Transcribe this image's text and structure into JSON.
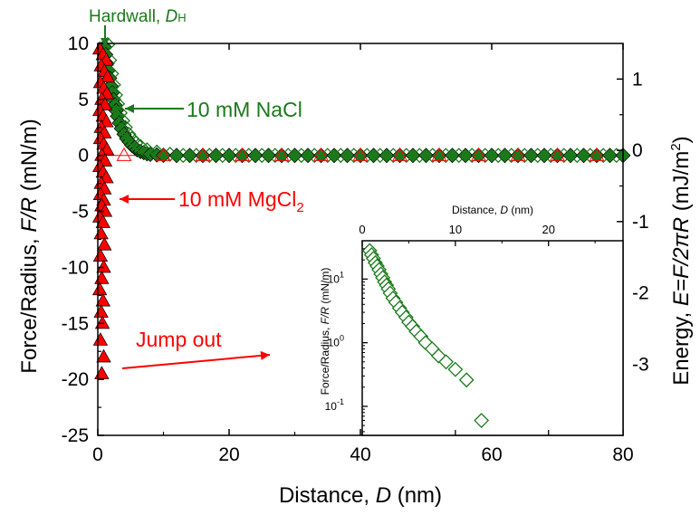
{
  "chart_data": [
    {
      "type": "scatter",
      "title": "",
      "xlabel_prefix": "Distance, ",
      "xlabel_var": "D",
      "xlabel_suffix": " (nm)",
      "ylabel_prefix": "Force/Radius, ",
      "ylabel_var": "F/R",
      "ylabel_suffix": " (mN/m)",
      "y2label_prefix": "Energy, ",
      "y2label_var": "E=F/2πR",
      "y2label_suffix": " (mJ/m",
      "y2label_sup": "2",
      "y2label_end": ")",
      "xlim": [
        0,
        80
      ],
      "ylim": [
        -25,
        10
      ],
      "y2lim": [
        -4,
        1.5
      ],
      "xticks": [
        "0",
        "20",
        "40",
        "60",
        "80"
      ],
      "yticks": [
        "-25",
        "-20",
        "-15",
        "-10",
        "-5",
        "0",
        "5",
        "10"
      ],
      "y2ticks": [
        "-3",
        "-2",
        "-1",
        "0",
        "1"
      ],
      "grid": false,
      "annotations": {
        "hardwall_prefix": "Hardwall, ",
        "hardwall_var": "D",
        "hardwall_sub": "H",
        "nacl": "10 mM NaCl",
        "mgcl_prefix": "10 mM MgCl",
        "mgcl_sub": "2",
        "jump": "Jump out"
      },
      "colors": {
        "nacl": "#1a7a1a",
        "mgcl": "#ff0000",
        "axis": "#000000"
      },
      "series": [
        {
          "name": "10 mM NaCl",
          "marker": "diamond-filled",
          "x": [
            1.0,
            1.2,
            1.4,
            1.6,
            1.8,
            2.0,
            2.2,
            2.4,
            2.6,
            2.8,
            3.0,
            3.3,
            3.6,
            4.0,
            4.4,
            4.8,
            5.2,
            5.6,
            6.0,
            6.5,
            7.0,
            7.5,
            8.0,
            9,
            10,
            12,
            14,
            16,
            18,
            20,
            22,
            24,
            26,
            28,
            30,
            32,
            34,
            36,
            38,
            40,
            42,
            44,
            46,
            48,
            50,
            52,
            54,
            56,
            58,
            60,
            62,
            64,
            66,
            68,
            70,
            72,
            74,
            76,
            78,
            80
          ],
          "y": [
            9.7,
            9.0,
            8.2,
            7.6,
            6.9,
            6.2,
            5.6,
            5.0,
            4.5,
            4.0,
            3.5,
            2.9,
            2.4,
            1.9,
            1.5,
            1.2,
            0.9,
            0.7,
            0.5,
            0.35,
            0.25,
            0.15,
            0.1,
            0.05,
            0.02,
            0,
            0,
            0,
            0,
            0,
            0,
            0,
            0,
            0,
            0,
            0,
            0,
            0,
            0,
            0,
            0,
            0,
            0,
            0,
            0,
            0,
            0,
            0,
            0,
            0,
            0,
            0,
            0,
            0,
            0,
            0,
            0,
            0,
            0,
            0
          ]
        },
        {
          "name": "10 mM NaCl",
          "marker": "diamond-open",
          "x": [
            1.5,
            1.8,
            2.1,
            2.4,
            2.7,
            3.0,
            3.4,
            3.8,
            4.2,
            4.7,
            5.2,
            5.8,
            6.5,
            7.5,
            9,
            11,
            13,
            15,
            17,
            19,
            21,
            23,
            25,
            27,
            29,
            31,
            33,
            35,
            37,
            39,
            41,
            43,
            45,
            47,
            49,
            51,
            53,
            55,
            57,
            59,
            61,
            63,
            65,
            67,
            69,
            71,
            73,
            75,
            77,
            79
          ],
          "y": [
            9.9,
            8.5,
            7.3,
            6.3,
            5.4,
            4.6,
            3.8,
            3.1,
            2.5,
            1.9,
            1.5,
            1.1,
            0.8,
            0.5,
            0.3,
            0.1,
            0,
            0,
            0,
            0,
            0,
            0,
            0,
            0,
            0,
            0,
            0,
            0,
            0,
            0,
            0,
            0,
            0,
            0,
            0,
            0,
            0,
            0,
            0,
            0,
            0,
            0,
            0,
            0,
            0,
            0,
            0,
            0,
            0,
            0
          ]
        },
        {
          "name": "10 mM MgCl2",
          "marker": "triangle",
          "x": [
            0.3,
            0.8,
            1.3,
            0.5,
            1.0,
            1.5,
            0.4,
            0.9,
            1.4,
            0.6,
            1.1,
            0.3,
            0.8,
            1.3,
            0.5,
            1.0,
            0.4,
            0.9,
            1.4,
            0.6,
            1.1,
            0.3,
            0.8,
            1.3,
            0.5,
            1.0,
            0.4,
            0.9,
            0.6,
            1.1,
            0.3,
            0.8,
            0.5,
            1.0,
            0.4,
            0.9,
            0.6,
            0.3,
            0.8,
            0.5,
            0.7,
            0.4,
            0.9,
            0.6
          ],
          "y": [
            9.5,
            9.0,
            8.5,
            8.0,
            7.5,
            7.0,
            6.5,
            6.0,
            5.5,
            5.0,
            4.5,
            4.0,
            3.5,
            3.0,
            2.5,
            2.0,
            1.5,
            1.0,
            0.5,
            0,
            -0.5,
            -1.0,
            -1.5,
            -2.0,
            -2.5,
            -3.0,
            -3.5,
            -4.0,
            -4.5,
            -5.0,
            -5.5,
            -6.0,
            -7.0,
            -8.0,
            -9.0,
            -10.0,
            -11.0,
            -12.0,
            -13.0,
            -14.0,
            -15.0,
            -16.5,
            -18.0,
            -19.5
          ]
        },
        {
          "name": "10 mM MgCl2",
          "marker": "triangle-open",
          "x": [
            4,
            10,
            16,
            22,
            28,
            34,
            40,
            46,
            52,
            58,
            64,
            70,
            76
          ],
          "y": [
            0,
            0,
            0,
            0,
            0,
            0,
            0,
            0,
            0,
            0,
            0,
            0,
            0
          ]
        }
      ]
    },
    {
      "type": "scatter",
      "title": "",
      "xlabel_prefix": "Distance, ",
      "xlabel_var": "D",
      "xlabel_suffix": " (nm)",
      "ylabel_prefix": "Force/Radius, ",
      "ylabel_var": "F/R",
      "ylabel_suffix": " (mN/m)",
      "xlim": [
        0,
        28
      ],
      "ylim_log": [
        0.035,
        40
      ],
      "xticks": [
        "0",
        "10",
        "20"
      ],
      "ytick_base": "10",
      "ytick_exps": [
        "-1",
        "0",
        "1"
      ],
      "grid": false,
      "series": [
        {
          "name": "10 mM NaCl",
          "marker": "diamond-open",
          "x": [
            0.8,
            1.0,
            1.2,
            1.4,
            1.6,
            1.8,
            2.0,
            2.2,
            2.4,
            2.6,
            2.8,
            3.0,
            3.3,
            3.6,
            4.0,
            4.3,
            4.7,
            5.0,
            5.4,
            5.8,
            6.3,
            6.8,
            7.5,
            8.2,
            9.0,
            10.0,
            11.2,
            12.8
          ],
          "y": [
            28,
            24,
            21,
            18,
            16,
            14,
            12,
            10.5,
            9,
            8,
            7,
            6,
            5,
            4.3,
            3.5,
            3.0,
            2.5,
            2.1,
            1.8,
            1.5,
            1.25,
            1.0,
            0.8,
            0.62,
            0.5,
            0.38,
            0.26,
            0.06
          ]
        }
      ]
    }
  ]
}
